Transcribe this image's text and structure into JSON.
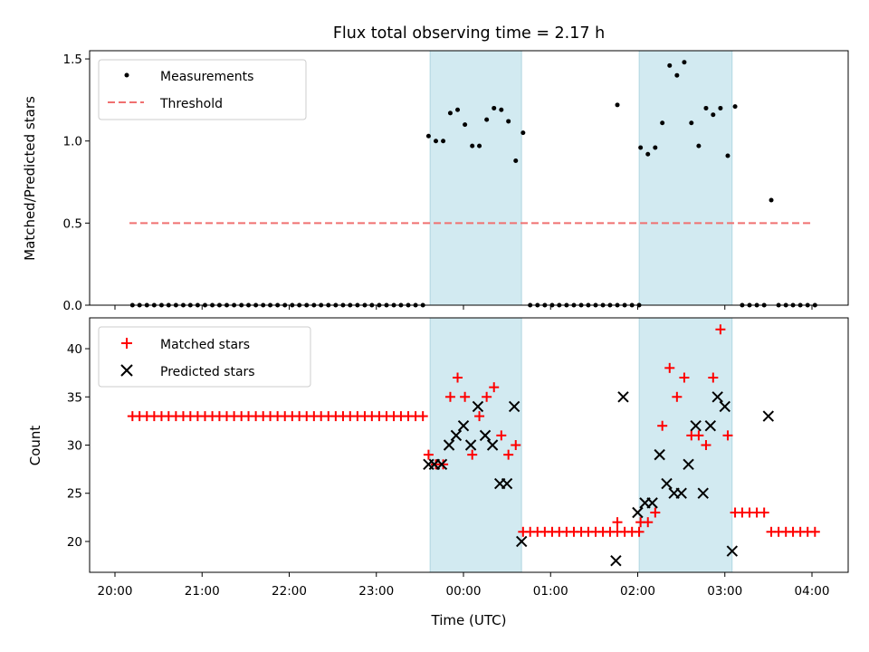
{
  "chart_data": [
    {
      "panel": "top",
      "type": "scatter",
      "title": "Flux total observing time = 2.17 h",
      "ylabel": "Matched/Predicted stars",
      "xlabel": "",
      "xlim": [
        "19:51",
        "04:25"
      ],
      "ylim": [
        0,
        1.55
      ],
      "yticks": [
        0.0,
        0.5,
        1.0,
        1.5
      ],
      "ytick_labels": [
        "0.0",
        "0.5",
        "1.0",
        "1.5"
      ],
      "legend": {
        "placement": "upper-left",
        "entries": [
          "Measurements",
          "Threshold"
        ]
      },
      "threshold": {
        "name": "Threshold",
        "value": 0.5,
        "x_start": "20:10",
        "x_end": "04:00",
        "color": "#f07070"
      },
      "highlight_spans": [
        [
          "23:37",
          "00:40"
        ],
        [
          "02:01",
          "03:05"
        ]
      ],
      "highlight_color": "#add8e6",
      "series": [
        {
          "name": "Measurements",
          "color": "#000000",
          "x": [
            "20:10",
            "20:15",
            "20:20",
            "20:25",
            "20:30",
            "20:35",
            "20:40",
            "20:45",
            "20:50",
            "20:55",
            "21:00",
            "21:05",
            "21:10",
            "21:15",
            "21:20",
            "21:25",
            "21:30",
            "21:35",
            "21:40",
            "21:45",
            "21:50",
            "21:55",
            "22:00",
            "22:05",
            "22:10",
            "22:15",
            "22:20",
            "22:25",
            "22:30",
            "22:35",
            "22:40",
            "22:45",
            "22:50",
            "22:55",
            "23:00",
            "23:05",
            "23:10",
            "23:15",
            "23:20",
            "23:25",
            "23:30",
            "23:35",
            "23:40",
            "23:45",
            "23:50",
            "23:55",
            "23:58",
            "00:01",
            "00:05",
            "00:10",
            "00:15",
            "00:20",
            "00:25",
            "00:30",
            "00:35",
            "00:40",
            "00:45",
            "00:50",
            "00:55",
            "01:00",
            "01:05",
            "01:10",
            "01:15",
            "01:20",
            "01:25",
            "01:30",
            "01:35",
            "01:40",
            "01:45",
            "01:50",
            "01:55",
            "01:45",
            "02:00",
            "02:05",
            "02:10",
            "02:15",
            "02:20",
            "02:25",
            "02:30",
            "02:35",
            "02:40",
            "02:45",
            "02:50",
            "02:55",
            "03:00",
            "03:05",
            "03:10",
            "03:15",
            "03:20",
            "03:25",
            "03:30",
            "03:35",
            "03:40",
            "03:45",
            "03:50",
            "03:55",
            "04:00"
          ],
          "y": [
            0,
            0,
            0,
            0,
            0,
            0,
            0,
            0,
            0,
            0,
            0,
            0,
            0,
            0,
            0,
            0,
            0,
            0,
            0,
            0,
            0,
            0,
            0,
            0,
            0,
            0,
            0,
            0,
            0,
            0,
            0,
            0,
            0,
            0,
            0,
            0,
            0,
            0,
            0,
            0,
            0,
            1.03,
            1.0,
            1.0,
            1.17,
            1.19,
            1.1,
            0.97,
            0.97,
            1.13,
            1.2,
            1.19,
            1.12,
            0.88,
            1.05,
            0,
            0,
            0,
            0,
            0,
            0,
            0,
            0,
            0,
            0,
            0,
            0,
            0,
            0,
            0,
            0,
            1.22,
            0.96,
            0.92,
            0.96,
            1.11,
            1.46,
            1.4,
            1.48,
            1.11,
            0.97,
            1.2,
            1.16,
            1.2,
            0.91,
            1.21,
            0,
            0,
            0,
            0,
            0.64,
            0,
            0,
            0,
            0,
            0,
            0
          ],
          "x_days": [
            -0.1583,
            -0.1549,
            -0.1514,
            -0.1479,
            -0.1444,
            -0.141,
            -0.1375,
            -0.134,
            -0.1306,
            -0.1271,
            -0.1236,
            -0.1201,
            -0.1167,
            -0.1132,
            -0.1097,
            -0.1062,
            -0.1028,
            -0.0993,
            -0.0958,
            -0.0924,
            -0.0889,
            -0.0854,
            -0.0819,
            -0.0785,
            -0.075,
            -0.0715,
            -0.0681,
            -0.0646,
            -0.0611,
            -0.0576,
            -0.0542,
            -0.0507,
            -0.0472,
            -0.0438,
            -0.0403,
            -0.0368,
            -0.0333,
            -0.0299,
            -0.0264,
            -0.0229,
            -0.0194,
            -0.0167,
            -0.0132,
            -0.0097,
            -0.0063,
            -0.0028,
            0.0007,
            0.0042,
            0.0076,
            0.0111,
            0.0146,
            0.0181,
            0.0215,
            0.025,
            0.0285,
            0.0319,
            0.0354,
            0.0389,
            0.0424,
            0.0458,
            0.0493,
            0.0528,
            0.0563,
            0.0597,
            0.0632,
            0.0667,
            0.0701,
            0.0736,
            0.0771,
            0.0806,
            0.084,
            0.0736,
            0.0847,
            0.0882,
            0.0917,
            0.0951,
            0.0986,
            0.1021,
            0.1056,
            0.109,
            0.1125,
            0.116,
            0.1194,
            0.1229,
            0.1264,
            0.1299,
            0.1333,
            0.1368,
            0.1403,
            0.1438,
            0.1472,
            0.1507,
            0.1542,
            0.1576,
            0.1611,
            0.1646,
            0.1681
          ]
        }
      ]
    },
    {
      "panel": "bottom",
      "type": "scatter",
      "title": "",
      "xlabel": "Time (UTC)",
      "ylabel": "Count",
      "xlim": [
        "19:51",
        "04:25"
      ],
      "ylim": [
        16.8,
        43.2
      ],
      "yticks": [
        20,
        25,
        30,
        35,
        40
      ],
      "ytick_labels": [
        "20",
        "25",
        "30",
        "35",
        "40"
      ],
      "xticks": [
        "20:00",
        "21:00",
        "22:00",
        "23:00",
        "00:00",
        "01:00",
        "02:00",
        "03:00",
        "04:00"
      ],
      "legend": {
        "placement": "upper-left",
        "entries": [
          "Matched stars",
          "Predicted stars"
        ]
      },
      "highlight_spans": [
        [
          "23:37",
          "00:40"
        ],
        [
          "02:01",
          "03:05"
        ]
      ],
      "series": [
        {
          "name": "Matched stars",
          "marker": "plus",
          "color": "#ff0000",
          "x_days": [
            -0.1583,
            -0.1549,
            -0.1514,
            -0.1479,
            -0.1444,
            -0.141,
            -0.1375,
            -0.134,
            -0.1306,
            -0.1271,
            -0.1236,
            -0.1201,
            -0.1167,
            -0.1132,
            -0.1097,
            -0.1062,
            -0.1028,
            -0.0993,
            -0.0958,
            -0.0924,
            -0.0889,
            -0.0854,
            -0.0819,
            -0.0785,
            -0.075,
            -0.0715,
            -0.0681,
            -0.0646,
            -0.0611,
            -0.0576,
            -0.0542,
            -0.0507,
            -0.0472,
            -0.0438,
            -0.0403,
            -0.0368,
            -0.0333,
            -0.0299,
            -0.0264,
            -0.0229,
            -0.0194,
            -0.0167,
            -0.0132,
            -0.0097,
            -0.0063,
            -0.0028,
            0.0007,
            0.0042,
            0.0076,
            0.0111,
            0.0146,
            0.0181,
            0.0215,
            0.025,
            0.0285,
            0.0319,
            0.0354,
            0.0389,
            0.0424,
            0.0458,
            0.0493,
            0.0528,
            0.0563,
            0.0597,
            0.0632,
            0.0667,
            0.0701,
            0.0736,
            0.0771,
            0.0806,
            0.084,
            0.0736,
            0.0847,
            0.0882,
            0.0917,
            0.0951,
            0.0986,
            0.1021,
            0.1056,
            0.109,
            0.1125,
            0.116,
            0.1194,
            0.1229,
            0.1264,
            0.1299,
            0.1333,
            0.1368,
            0.1403,
            0.1438,
            0.1472,
            0.1507,
            0.1542,
            0.1576,
            0.1611,
            0.1646,
            0.1681
          ],
          "y": [
            33,
            33,
            33,
            33,
            33,
            33,
            33,
            33,
            33,
            33,
            33,
            33,
            33,
            33,
            33,
            33,
            33,
            33,
            33,
            33,
            33,
            33,
            33,
            33,
            33,
            33,
            33,
            33,
            33,
            33,
            33,
            33,
            33,
            33,
            33,
            33,
            33,
            33,
            33,
            33,
            33,
            29,
            28,
            28,
            35,
            37,
            35,
            29,
            33,
            35,
            36,
            31,
            29,
            30,
            21,
            21,
            21,
            21,
            21,
            21,
            21,
            21,
            21,
            21,
            21,
            21,
            21,
            21,
            21,
            21,
            21,
            22,
            22,
            22,
            23,
            32,
            38,
            35,
            37,
            31,
            31,
            30,
            37,
            42,
            31,
            23,
            23,
            23,
            23,
            23,
            21,
            21,
            21,
            21,
            21,
            21,
            21
          ],
          "x": [
            "20:10",
            "20:15",
            "20:20",
            "20:25",
            "20:30",
            "20:35",
            "20:40",
            "20:45",
            "20:50",
            "20:55",
            "21:00",
            "21:05",
            "21:10",
            "21:15",
            "21:20",
            "21:25",
            "21:30",
            "21:35",
            "21:40",
            "21:45",
            "21:50",
            "21:55",
            "22:00",
            "22:05",
            "22:10",
            "22:15",
            "22:20",
            "22:25",
            "22:30",
            "22:35",
            "22:40",
            "22:45",
            "22:50",
            "22:55",
            "23:00",
            "23:05",
            "23:10",
            "23:15",
            "23:20",
            "23:25",
            "23:30",
            "23:35",
            "23:40",
            "23:45",
            "23:50",
            "23:55",
            "23:58",
            "00:01",
            "00:05",
            "00:10",
            "00:15",
            "00:20",
            "00:25",
            "00:30",
            "00:35",
            "00:40",
            "00:45",
            "00:50",
            "00:55",
            "01:00",
            "01:05",
            "01:10",
            "01:15",
            "01:20",
            "01:25",
            "01:30",
            "01:35",
            "01:40",
            "01:45",
            "01:50",
            "01:55",
            "01:45",
            "02:00",
            "02:05",
            "02:10",
            "02:15",
            "02:20",
            "02:25",
            "02:30",
            "02:35",
            "02:40",
            "02:45",
            "02:50",
            "02:55",
            "03:00",
            "03:05",
            "03:10",
            "03:15",
            "03:20",
            "03:25",
            "03:30",
            "03:35",
            "03:40",
            "03:45",
            "03:50",
            "03:55",
            "04:00"
          ]
        },
        {
          "name": "Predicted stars",
          "marker": "x",
          "color": "#000000",
          "x": [
            "23:36",
            "23:40",
            "23:45",
            "23:50",
            "23:55",
            "00:00",
            "00:05",
            "00:10",
            "00:15",
            "00:20",
            "00:25",
            "00:30",
            "00:35",
            "00:40",
            "01:45",
            "01:50",
            "02:00",
            "02:05",
            "02:10",
            "02:15",
            "02:20",
            "02:25",
            "02:30",
            "02:35",
            "02:40",
            "02:45",
            "02:50",
            "02:55",
            "03:00",
            "03:05",
            "03:30"
          ],
          "x_days": [
            -0.0167,
            -0.0139,
            -0.0104,
            -0.0069,
            -0.0035,
            0.0,
            0.0035,
            0.0069,
            0.0104,
            0.0139,
            0.0174,
            0.0208,
            0.0243,
            0.0278,
            0.0729,
            0.0764,
            0.0833,
            0.0868,
            0.0903,
            0.0938,
            0.0972,
            0.1007,
            0.1042,
            0.1076,
            0.1111,
            0.1146,
            0.1181,
            0.1215,
            0.125,
            0.1285,
            0.1458
          ],
          "y": [
            28,
            28,
            28,
            30,
            31,
            32,
            30,
            34,
            31,
            30,
            26,
            26,
            34,
            20,
            18,
            35,
            23,
            24,
            24,
            29,
            26,
            25,
            25,
            28,
            32,
            25,
            32,
            35,
            34,
            19,
            33
          ]
        }
      ]
    }
  ]
}
